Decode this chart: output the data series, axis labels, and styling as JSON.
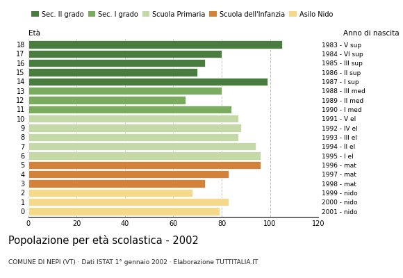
{
  "ages": [
    18,
    17,
    16,
    15,
    14,
    13,
    12,
    11,
    10,
    9,
    8,
    7,
    6,
    5,
    4,
    3,
    2,
    1,
    0
  ],
  "values": [
    105,
    80,
    73,
    70,
    99,
    80,
    65,
    84,
    87,
    88,
    87,
    94,
    96,
    96,
    83,
    73,
    68,
    83,
    79
  ],
  "anni_nascita": [
    "1983 - V sup",
    "1984 - VI sup",
    "1985 - III sup",
    "1986 - II sup",
    "1987 - I sup",
    "1988 - III med",
    "1989 - II med",
    "1990 - I med",
    "1991 - V el",
    "1992 - IV el",
    "1993 - III el",
    "1994 - II el",
    "1995 - I el",
    "1996 - mat",
    "1997 - mat",
    "1998 - mat",
    "1999 - nido",
    "2000 - nido",
    "2001 - nido"
  ],
  "colors": [
    "#4a7c3f",
    "#4a7c3f",
    "#4a7c3f",
    "#4a7c3f",
    "#4a7c3f",
    "#7aab5e",
    "#7aab5e",
    "#7aab5e",
    "#c5d9a8",
    "#c5d9a8",
    "#c5d9a8",
    "#c5d9a8",
    "#c5d9a8",
    "#d4813a",
    "#d4813a",
    "#d4813a",
    "#f5d98b",
    "#f5d98b",
    "#f5d98b"
  ],
  "legend_labels": [
    "Sec. II grado",
    "Sec. I grado",
    "Scuola Primaria",
    "Scuola dell'Infanzia",
    "Asilo Nido"
  ],
  "legend_colors": [
    "#4a7c3f",
    "#7aab5e",
    "#c5d9a8",
    "#d4813a",
    "#f5d98b"
  ],
  "title": "Popolazione per età scolastica - 2002",
  "subtitle": "COMUNE DI NEPI (VT) · Dati ISTAT 1° gennaio 2002 · Elaborazione TUTTITALIA.IT",
  "label_eta": "Età",
  "label_anno": "Anno di nascita",
  "xlim": [
    0,
    120
  ],
  "xticks": [
    0,
    20,
    40,
    60,
    80,
    100,
    120
  ],
  "grid_color": "#bbbbbb",
  "bar_height": 0.85
}
